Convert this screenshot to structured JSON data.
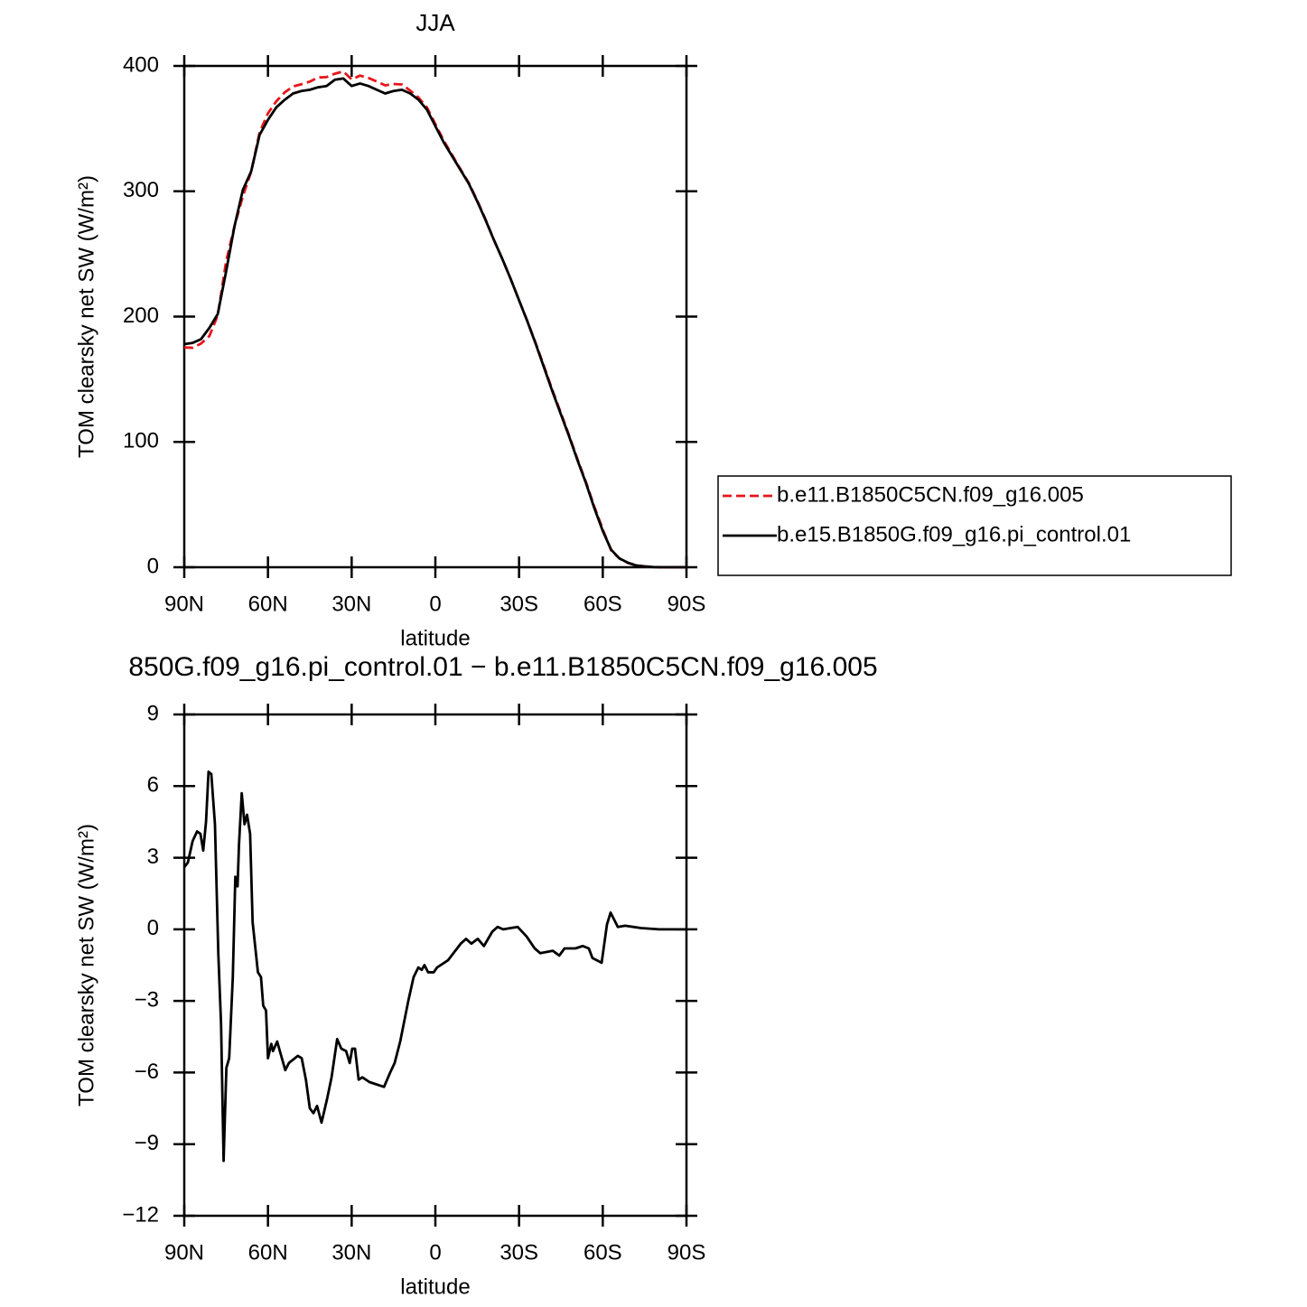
{
  "chart_data": [
    {
      "type": "line",
      "title": "JJA",
      "xlabel": "latitude",
      "ylabel": "TOM clearsky net SW (W/m²)",
      "x": [
        90,
        87,
        84,
        81,
        78,
        75,
        72,
        69,
        66,
        63,
        60,
        57,
        54,
        51,
        48,
        45,
        42,
        39,
        36,
        33,
        30,
        27,
        24,
        21,
        18,
        15,
        12,
        9,
        6,
        3,
        0,
        -3,
        -6,
        -9,
        -12,
        -15,
        -18,
        -21,
        -24,
        -27,
        -30,
        -33,
        -36,
        -39,
        -42,
        -45,
        -48,
        -51,
        -54,
        -57,
        -60,
        -63,
        -66,
        -69,
        -72,
        -75,
        -78,
        -81,
        -84,
        -87,
        -90
      ],
      "series": [
        {
          "name": "b.e11.B1850C5CN.f09_g16.005",
          "color": "#e8151b",
          "linestyle": "dashed",
          "values": [
            175.4,
            175.1,
            178.5,
            184.5,
            201,
            244,
            272.1,
            296,
            315.7,
            347,
            362.2,
            371.8,
            378.9,
            383.6,
            385.4,
            387.5,
            390.8,
            391.1,
            393.8,
            395.6,
            389.2,
            392.3,
            390.4,
            387.6,
            384.5,
            385.6,
            385.2,
            380.3,
            374.7,
            366.8,
            353.6,
            340.4,
            329,
            317.6,
            306.6,
            292.6,
            277.5,
            261.1,
            246,
            230,
            213,
            196.3,
            178.6,
            159.9,
            141,
            123,
            104.8,
            85.8,
            67.8,
            48.2,
            30.3,
            13.4,
            6.9,
            3.5,
            1.3,
            0.65,
            0.2,
            0,
            0,
            0,
            0
          ]
        },
        {
          "name": "b.e15.B1850G.f09_g16.pi_control.01",
          "color": "#000000",
          "linestyle": "solid",
          "values": [
            178,
            179,
            182,
            191,
            202,
            236,
            272,
            301,
            316,
            345,
            357,
            367,
            373,
            378,
            380,
            381,
            383,
            384,
            389,
            390,
            384,
            386,
            384,
            381,
            378,
            380,
            381,
            378,
            373,
            365,
            352,
            339,
            328,
            317,
            306,
            292,
            277,
            261,
            246,
            230,
            213,
            196,
            178,
            159,
            140,
            122,
            104,
            85,
            67,
            47,
            29,
            14,
            7,
            3.6,
            1.4,
            0.7,
            0.2,
            0,
            0,
            0,
            0
          ]
        }
      ],
      "xlim": [
        90,
        -90
      ],
      "xticks": [
        {
          "value": 90,
          "label": "90N"
        },
        {
          "value": 60,
          "label": "60N"
        },
        {
          "value": 30,
          "label": "30N"
        },
        0,
        {
          "value": -30,
          "label": "30S"
        },
        {
          "value": -60,
          "label": "60S"
        },
        {
          "value": -90,
          "label": "90S"
        }
      ],
      "ylim": [
        0,
        400
      ],
      "yticks": [
        0,
        100,
        200,
        300,
        400
      ],
      "legend": "right"
    },
    {
      "type": "line",
      "title": "850G.f09_g16.pi_control.01 − b.e11.B1850C5CN.f09_g16.005",
      "xlabel": "latitude",
      "ylabel": "TOM clearsky net SW (W/m²)",
      "x": [
        90,
        88.7,
        87,
        85.4,
        84.2,
        83.2,
        82.2,
        81.3,
        80.3,
        79,
        77.8,
        76.8,
        75.9,
        74.9,
        73.9,
        72.6,
        71.7,
        70.9,
        70.4,
        69.4,
        68.4,
        67.5,
        66.4,
        65.5,
        63.6,
        62.5,
        61.7,
        60.7,
        60,
        58.8,
        58.2,
        56.7,
        53.8,
        52.5,
        49.3,
        47.9,
        46.4,
        45,
        43.7,
        42.4,
        40.8,
        38.8,
        37.2,
        35.2,
        33.7,
        32,
        30.7,
        29.8,
        28.8,
        27.5,
        26.2,
        23.6,
        18.4,
        16.2,
        14.6,
        12.6,
        9.7,
        7.8,
        6.1,
        4.9,
        3.9,
        2.6,
        0.6,
        -0.6,
        -4.5,
        -9.1,
        -11,
        -12.9,
        -15.2,
        -17.4,
        -20.4,
        -22.3,
        -24.3,
        -26.9,
        -29.5,
        -32.7,
        -35.6,
        -37.6,
        -42.1,
        -44.4,
        -46.3,
        -50.2,
        -52.8,
        -55,
        -56.3,
        -59.6,
        -61.5,
        -62.8,
        -65.4,
        -68,
        -73.8,
        -80.3,
        -90
      ],
      "series": [
        {
          "color": "#000000",
          "linestyle": "solid",
          "values": [
            2.6,
            2.8,
            3.7,
            4.1,
            4.0,
            3.3,
            4.5,
            6.6,
            6.5,
            4.4,
            -1,
            -4,
            -9.7,
            -5.8,
            -5.4,
            -2,
            2.2,
            1.8,
            3.5,
            5.7,
            4.4,
            4.8,
            4.0,
            0.3,
            -1.8,
            -2.0,
            -3.2,
            -3.4,
            -5.4,
            -4.8,
            -5.1,
            -4.7,
            -5.9,
            -5.6,
            -5.3,
            -5.4,
            -6.3,
            -7.5,
            -7.7,
            -7.4,
            -8.1,
            -7.1,
            -6.2,
            -4.6,
            -5,
            -5.1,
            -5.6,
            -5,
            -5,
            -6.3,
            -6.2,
            -6.4,
            -6.6,
            -6.0,
            -5.6,
            -4.7,
            -3,
            -2,
            -1.6,
            -1.7,
            -1.5,
            -1.8,
            -1.8,
            -1.6,
            -1.3,
            -0.6,
            -0.4,
            -0.6,
            -0.4,
            -0.7,
            -0.1,
            0.1,
            0,
            0.05,
            0.1,
            -0.3,
            -0.8,
            -1,
            -0.9,
            -1.1,
            -0.8,
            -0.8,
            -0.7,
            -0.8,
            -1.2,
            -1.4,
            0.2,
            0.7,
            0.1,
            0.15,
            0.05,
            0,
            0
          ]
        }
      ],
      "xlim": [
        90,
        -90
      ],
      "xticks": [
        {
          "value": 90,
          "label": "90N"
        },
        {
          "value": 60,
          "label": "60N"
        },
        {
          "value": 30,
          "label": "30N"
        },
        0,
        {
          "value": -30,
          "label": "30S"
        },
        {
          "value": -60,
          "label": "60S"
        },
        {
          "value": -90,
          "label": "90S"
        }
      ],
      "ylim": [
        -12,
        9
      ],
      "yticks": [
        {
          "value": -12,
          "label": "−12"
        },
        {
          "value": -9,
          "label": "−9"
        },
        {
          "value": -6,
          "label": "−6"
        },
        {
          "value": -3,
          "label": "−3"
        },
        0,
        3,
        6,
        9
      ]
    }
  ]
}
